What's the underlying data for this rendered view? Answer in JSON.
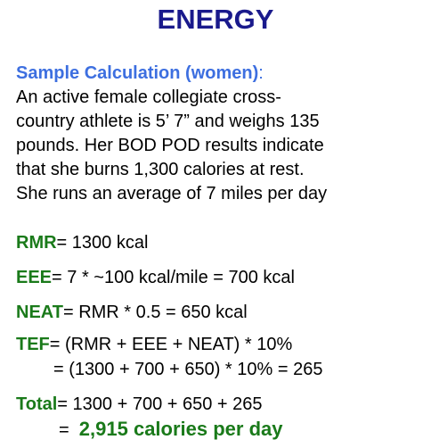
{
  "title": "ENERGY",
  "intro": {
    "subhead": "Sample Calculation (women)",
    "colon": ":",
    "lines": [
      "An active female collegiate cross-",
      "country athlete is 5’ 7” and weighs 135",
      "pounds.  Her BOD POD results indicate",
      "that she burns 1,300 calories at rest.",
      "She runs an average of 7 miles per day"
    ]
  },
  "calc": {
    "rmr": {
      "label": "RMR",
      "text": "= 1300 kcal"
    },
    "eee": {
      "label": "EEE",
      "text": "= 7 * ~100 kcal/mile = 700 kcal"
    },
    "neat": {
      "label": "NEAT",
      "text": "=  RMR * 0.5 = 650 kcal"
    },
    "tef": {
      "label": "TEF",
      "text": "= (RMR + EEE + NEAT) * 10%",
      "line2": "= (1300 + 700 + 650) * 10% = 265"
    },
    "total": {
      "label": "Total",
      "text": "= 1300 + 700 + 650 + 265",
      "line2_prefix": "=  ",
      "result": "2,915 calories per day"
    }
  },
  "colors": {
    "title": "#1a1a8c",
    "subhead": "#3d6fe0",
    "label": "#1a7a1a"
  }
}
